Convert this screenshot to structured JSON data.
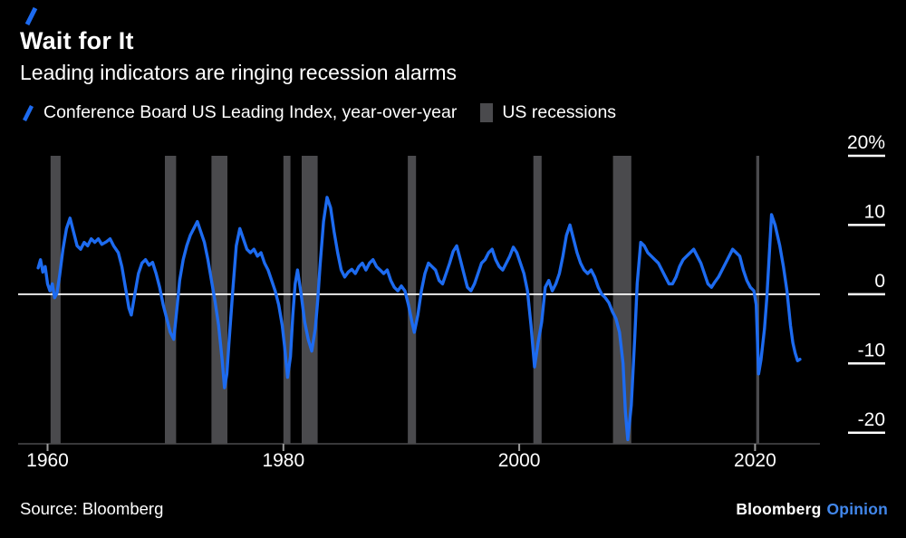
{
  "header": {
    "title": "Wait for It",
    "subtitle": "Leading indicators are ringing recession alarms"
  },
  "legend": {
    "series_label": "Conference Board US Leading Index, year-over-year",
    "recessions_label": "US recessions"
  },
  "footer": {
    "source": "Source: Bloomberg",
    "brand": "Bloomberg",
    "brand_suffix": "Opinion"
  },
  "colors": {
    "background": "#000000",
    "text": "#FFFFFF",
    "line": "#1D6BF0",
    "opinion_blue": "#4287EB",
    "recession_band": "#4A4A4D",
    "zero_line": "#FFFFFF",
    "axis_line": "#4A4A4D",
    "tick": "#9B9B9B"
  },
  "chart_data": {
    "type": "line",
    "title": "Wait for It",
    "subtitle": "Leading indicators are ringing recession alarms",
    "xlabel": "",
    "ylabel": "",
    "legend_position": "top-left",
    "grid": false,
    "x_range": [
      1957.5,
      2025.5
    ],
    "y_range": [
      -21.6,
      20
    ],
    "zero_line": 0,
    "x_ticks": [
      {
        "year": 1960,
        "label": "1960"
      },
      {
        "year": 1980,
        "label": "1980"
      },
      {
        "year": 2000,
        "label": "2000"
      },
      {
        "year": 2020,
        "label": "2020"
      }
    ],
    "y_ticks": [
      {
        "value": 20,
        "label": "20%"
      },
      {
        "value": 10,
        "label": "10"
      },
      {
        "value": 0,
        "label": "0"
      },
      {
        "value": -10,
        "label": "-10"
      },
      {
        "value": -20,
        "label": "-20"
      }
    ],
    "recessions": [
      [
        1960.25,
        1961.1
      ],
      [
        1969.95,
        1970.9
      ],
      [
        1973.9,
        1975.25
      ],
      [
        1980.0,
        1980.6
      ],
      [
        1981.55,
        1982.9
      ],
      [
        1990.55,
        1991.25
      ],
      [
        2001.2,
        2001.9
      ],
      [
        2007.95,
        2009.5
      ],
      [
        2020.1,
        2020.35
      ]
    ],
    "series": [
      {
        "name": "Conference Board US Leading Index, year-over-year",
        "units": "%",
        "points": [
          [
            1959.2,
            3.8
          ],
          [
            1959.4,
            5.0
          ],
          [
            1959.6,
            3.2
          ],
          [
            1959.8,
            4.0
          ],
          [
            1960.0,
            1.5
          ],
          [
            1960.2,
            0.5
          ],
          [
            1960.4,
            1.5
          ],
          [
            1960.6,
            -0.5
          ],
          [
            1960.8,
            0.2
          ],
          [
            1961.0,
            2.5
          ],
          [
            1961.3,
            6.5
          ],
          [
            1961.6,
            9.5
          ],
          [
            1961.9,
            11.0
          ],
          [
            1962.2,
            9.0
          ],
          [
            1962.5,
            7.0
          ],
          [
            1962.8,
            6.5
          ],
          [
            1963.1,
            7.5
          ],
          [
            1963.4,
            7.0
          ],
          [
            1963.7,
            8.0
          ],
          [
            1964.0,
            7.5
          ],
          [
            1964.3,
            8.0
          ],
          [
            1964.6,
            7.2
          ],
          [
            1965.0,
            7.6
          ],
          [
            1965.3,
            8.0
          ],
          [
            1965.6,
            7.0
          ],
          [
            1966.0,
            6.0
          ],
          [
            1966.3,
            4.0
          ],
          [
            1966.6,
            1.0
          ],
          [
            1966.9,
            -2.0
          ],
          [
            1967.1,
            -3.0
          ],
          [
            1967.4,
            0.0
          ],
          [
            1967.7,
            3.0
          ],
          [
            1968.0,
            4.5
          ],
          [
            1968.3,
            5.0
          ],
          [
            1968.6,
            4.2
          ],
          [
            1968.9,
            4.6
          ],
          [
            1969.2,
            3.0
          ],
          [
            1969.5,
            1.0
          ],
          [
            1969.8,
            -1.5
          ],
          [
            1970.1,
            -3.5
          ],
          [
            1970.4,
            -5.5
          ],
          [
            1970.7,
            -6.5
          ],
          [
            1971.0,
            -1.5
          ],
          [
            1971.2,
            2.0
          ],
          [
            1971.5,
            5.0
          ],
          [
            1971.8,
            7.0
          ],
          [
            1972.1,
            8.5
          ],
          [
            1972.4,
            9.5
          ],
          [
            1972.7,
            10.5
          ],
          [
            1973.0,
            9.0
          ],
          [
            1973.3,
            7.5
          ],
          [
            1973.6,
            5.0
          ],
          [
            1973.9,
            2.0
          ],
          [
            1974.2,
            -1.0
          ],
          [
            1974.5,
            -4.5
          ],
          [
            1974.8,
            -9.5
          ],
          [
            1975.0,
            -13.5
          ],
          [
            1975.2,
            -11.5
          ],
          [
            1975.4,
            -6.5
          ],
          [
            1975.7,
            0.5
          ],
          [
            1976.0,
            7.0
          ],
          [
            1976.3,
            9.5
          ],
          [
            1976.6,
            8.0
          ],
          [
            1976.9,
            6.5
          ],
          [
            1977.2,
            6.0
          ],
          [
            1977.5,
            6.5
          ],
          [
            1977.8,
            5.5
          ],
          [
            1978.1,
            6.0
          ],
          [
            1978.4,
            4.5
          ],
          [
            1978.7,
            3.5
          ],
          [
            1979.0,
            2.0
          ],
          [
            1979.3,
            0.5
          ],
          [
            1979.6,
            -1.5
          ],
          [
            1979.9,
            -4.5
          ],
          [
            1980.1,
            -7.5
          ],
          [
            1980.35,
            -12.0
          ],
          [
            1980.6,
            -9.0
          ],
          [
            1980.8,
            -3.0
          ],
          [
            1981.0,
            1.5
          ],
          [
            1981.2,
            3.5
          ],
          [
            1981.5,
            0.0
          ],
          [
            1981.8,
            -4.0
          ],
          [
            1982.1,
            -6.5
          ],
          [
            1982.4,
            -8.2
          ],
          [
            1982.7,
            -5.0
          ],
          [
            1982.9,
            -1.0
          ],
          [
            1983.1,
            4.0
          ],
          [
            1983.4,
            10.5
          ],
          [
            1983.7,
            14.0
          ],
          [
            1984.0,
            12.5
          ],
          [
            1984.3,
            9.0
          ],
          [
            1984.6,
            6.0
          ],
          [
            1984.9,
            3.5
          ],
          [
            1985.2,
            2.5
          ],
          [
            1985.5,
            3.2
          ],
          [
            1985.8,
            3.6
          ],
          [
            1986.1,
            3.0
          ],
          [
            1986.4,
            4.0
          ],
          [
            1986.7,
            4.5
          ],
          [
            1987.0,
            3.5
          ],
          [
            1987.3,
            4.5
          ],
          [
            1987.6,
            5.0
          ],
          [
            1987.9,
            4.0
          ],
          [
            1988.2,
            3.5
          ],
          [
            1988.5,
            3.0
          ],
          [
            1988.8,
            3.5
          ],
          [
            1989.1,
            2.0
          ],
          [
            1989.4,
            1.0
          ],
          [
            1989.7,
            0.5
          ],
          [
            1990.0,
            1.2
          ],
          [
            1990.3,
            0.5
          ],
          [
            1990.6,
            -1.5
          ],
          [
            1990.9,
            -4.0
          ],
          [
            1991.1,
            -5.5
          ],
          [
            1991.4,
            -3.0
          ],
          [
            1991.7,
            0.5
          ],
          [
            1992.0,
            3.0
          ],
          [
            1992.3,
            4.5
          ],
          [
            1992.6,
            4.0
          ],
          [
            1992.9,
            3.5
          ],
          [
            1993.2,
            2.0
          ],
          [
            1993.5,
            1.5
          ],
          [
            1993.8,
            3.0
          ],
          [
            1994.1,
            4.5
          ],
          [
            1994.4,
            6.2
          ],
          [
            1994.7,
            7.0
          ],
          [
            1995.0,
            5.0
          ],
          [
            1995.3,
            3.0
          ],
          [
            1995.6,
            1.0
          ],
          [
            1995.9,
            0.5
          ],
          [
            1996.2,
            1.5
          ],
          [
            1996.5,
            3.0
          ],
          [
            1996.8,
            4.5
          ],
          [
            1997.1,
            5.0
          ],
          [
            1997.4,
            6.0
          ],
          [
            1997.7,
            6.5
          ],
          [
            1998.0,
            5.0
          ],
          [
            1998.3,
            4.0
          ],
          [
            1998.6,
            3.5
          ],
          [
            1998.9,
            4.5
          ],
          [
            1999.2,
            5.5
          ],
          [
            1999.5,
            6.8
          ],
          [
            1999.8,
            6.0
          ],
          [
            2000.1,
            4.5
          ],
          [
            2000.4,
            3.0
          ],
          [
            2000.7,
            0.5
          ],
          [
            2001.0,
            -4.5
          ],
          [
            2001.3,
            -10.5
          ],
          [
            2001.6,
            -7.0
          ],
          [
            2001.9,
            -4.0
          ],
          [
            2002.2,
            1.0
          ],
          [
            2002.5,
            2.0
          ],
          [
            2002.8,
            0.5
          ],
          [
            2003.1,
            1.5
          ],
          [
            2003.4,
            3.0
          ],
          [
            2003.7,
            5.5
          ],
          [
            2004.0,
            8.5
          ],
          [
            2004.3,
            10.0
          ],
          [
            2004.6,
            8.0
          ],
          [
            2004.9,
            6.0
          ],
          [
            2005.2,
            4.5
          ],
          [
            2005.5,
            3.5
          ],
          [
            2005.8,
            3.0
          ],
          [
            2006.1,
            3.5
          ],
          [
            2006.4,
            2.5
          ],
          [
            2006.7,
            1.0
          ],
          [
            2007.0,
            0.0
          ],
          [
            2007.3,
            -0.5
          ],
          [
            2007.6,
            -1.2
          ],
          [
            2007.9,
            -2.5
          ],
          [
            2008.2,
            -3.5
          ],
          [
            2008.5,
            -5.5
          ],
          [
            2008.8,
            -10.0
          ],
          [
            2009.0,
            -17.0
          ],
          [
            2009.2,
            -21.0
          ],
          [
            2009.5,
            -16.0
          ],
          [
            2009.8,
            -6.0
          ],
          [
            2010.0,
            1.5
          ],
          [
            2010.3,
            7.5
          ],
          [
            2010.6,
            7.0
          ],
          [
            2010.9,
            6.0
          ],
          [
            2011.2,
            5.5
          ],
          [
            2011.5,
            5.0
          ],
          [
            2011.8,
            4.5
          ],
          [
            2012.1,
            3.5
          ],
          [
            2012.4,
            2.5
          ],
          [
            2012.7,
            1.5
          ],
          [
            2013.0,
            1.5
          ],
          [
            2013.3,
            2.5
          ],
          [
            2013.6,
            4.0
          ],
          [
            2013.9,
            5.0
          ],
          [
            2014.2,
            5.5
          ],
          [
            2014.5,
            6.0
          ],
          [
            2014.8,
            6.5
          ],
          [
            2015.1,
            5.5
          ],
          [
            2015.4,
            4.5
          ],
          [
            2015.7,
            3.0
          ],
          [
            2016.0,
            1.5
          ],
          [
            2016.3,
            1.0
          ],
          [
            2016.6,
            1.8
          ],
          [
            2016.9,
            2.5
          ],
          [
            2017.2,
            3.5
          ],
          [
            2017.5,
            4.5
          ],
          [
            2017.8,
            5.5
          ],
          [
            2018.1,
            6.5
          ],
          [
            2018.4,
            6.0
          ],
          [
            2018.7,
            5.5
          ],
          [
            2019.0,
            3.5
          ],
          [
            2019.3,
            2.0
          ],
          [
            2019.6,
            1.0
          ],
          [
            2019.9,
            0.5
          ],
          [
            2020.1,
            -1.5
          ],
          [
            2020.3,
            -11.5
          ],
          [
            2020.5,
            -9.5
          ],
          [
            2020.8,
            -5.0
          ],
          [
            2021.0,
            -0.5
          ],
          [
            2021.2,
            5.5
          ],
          [
            2021.4,
            11.5
          ],
          [
            2021.7,
            10.0
          ],
          [
            2021.9,
            8.5
          ],
          [
            2022.1,
            7.0
          ],
          [
            2022.4,
            4.0
          ],
          [
            2022.7,
            0.5
          ],
          [
            2023.0,
            -4.5
          ],
          [
            2023.2,
            -7.0
          ],
          [
            2023.4,
            -8.5
          ],
          [
            2023.6,
            -9.6
          ],
          [
            2023.8,
            -9.4
          ]
        ]
      }
    ]
  }
}
